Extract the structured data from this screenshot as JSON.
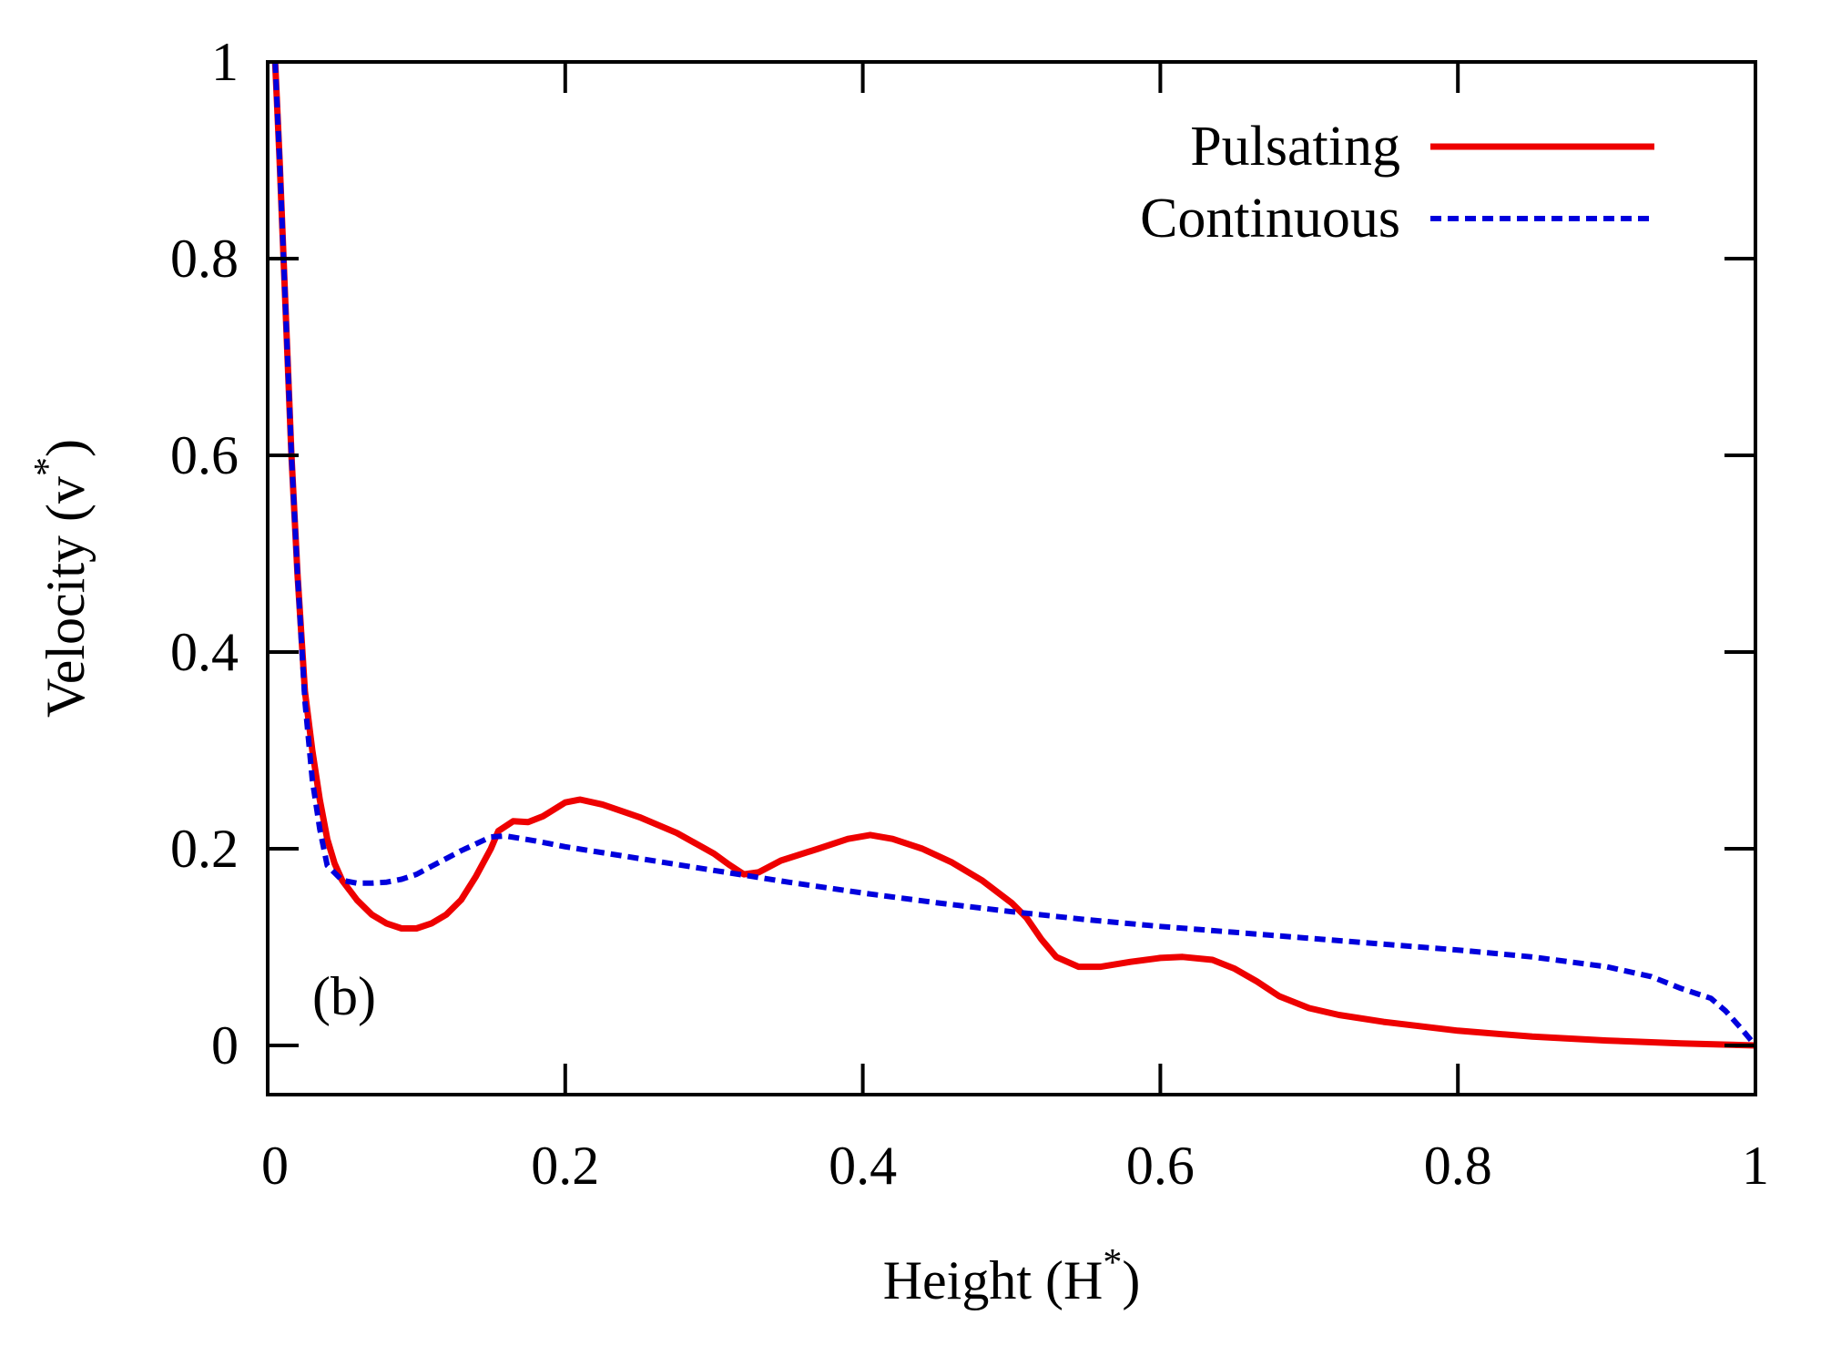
{
  "chart_data": {
    "type": "line",
    "title": "",
    "xlabel": "Height (H",
    "xlabel_sup": "*",
    "xlabel_end": ")",
    "ylabel": "Velocity (v",
    "ylabel_sup": "*",
    "ylabel_end": ")",
    "xlim": [
      0,
      1
    ],
    "ylim": [
      -0.05,
      1
    ],
    "xticks": [
      0,
      0.2,
      0.4,
      0.6,
      0.8,
      1
    ],
    "xtick_labels": [
      "0",
      "0.2",
      "0.4",
      "0.6",
      "0.8",
      "1"
    ],
    "yticks": [
      0,
      0.2,
      0.4,
      0.6,
      0.8,
      1
    ],
    "ytick_labels": [
      "0",
      "0.2",
      "0.4",
      "0.6",
      "0.8",
      "1"
    ],
    "grid": false,
    "legend_position": "top-right",
    "annotation": "(b)",
    "series": [
      {
        "name": "Pulsating",
        "color": "#ee0000",
        "dash": "solid",
        "points": [
          [
            0.005,
            1.0
          ],
          [
            0.008,
            0.9
          ],
          [
            0.012,
            0.75
          ],
          [
            0.016,
            0.6
          ],
          [
            0.02,
            0.48
          ],
          [
            0.025,
            0.36
          ],
          [
            0.03,
            0.3
          ],
          [
            0.035,
            0.25
          ],
          [
            0.04,
            0.21
          ],
          [
            0.045,
            0.185
          ],
          [
            0.05,
            0.168
          ],
          [
            0.06,
            0.148
          ],
          [
            0.07,
            0.133
          ],
          [
            0.08,
            0.124
          ],
          [
            0.09,
            0.119
          ],
          [
            0.1,
            0.119
          ],
          [
            0.11,
            0.124
          ],
          [
            0.12,
            0.133
          ],
          [
            0.13,
            0.148
          ],
          [
            0.14,
            0.172
          ],
          [
            0.15,
            0.2
          ],
          [
            0.155,
            0.218
          ],
          [
            0.165,
            0.228
          ],
          [
            0.175,
            0.227
          ],
          [
            0.185,
            0.233
          ],
          [
            0.2,
            0.247
          ],
          [
            0.21,
            0.25
          ],
          [
            0.225,
            0.245
          ],
          [
            0.25,
            0.232
          ],
          [
            0.275,
            0.216
          ],
          [
            0.3,
            0.195
          ],
          [
            0.31,
            0.184
          ],
          [
            0.32,
            0.174
          ],
          [
            0.33,
            0.176
          ],
          [
            0.345,
            0.188
          ],
          [
            0.37,
            0.2
          ],
          [
            0.39,
            0.21
          ],
          [
            0.405,
            0.214
          ],
          [
            0.42,
            0.21
          ],
          [
            0.44,
            0.2
          ],
          [
            0.46,
            0.186
          ],
          [
            0.48,
            0.168
          ],
          [
            0.5,
            0.145
          ],
          [
            0.51,
            0.13
          ],
          [
            0.52,
            0.108
          ],
          [
            0.53,
            0.09
          ],
          [
            0.545,
            0.08
          ],
          [
            0.56,
            0.08
          ],
          [
            0.58,
            0.085
          ],
          [
            0.6,
            0.089
          ],
          [
            0.615,
            0.09
          ],
          [
            0.635,
            0.087
          ],
          [
            0.65,
            0.078
          ],
          [
            0.665,
            0.065
          ],
          [
            0.68,
            0.05
          ],
          [
            0.7,
            0.038
          ],
          [
            0.72,
            0.031
          ],
          [
            0.75,
            0.024
          ],
          [
            0.8,
            0.015
          ],
          [
            0.85,
            0.009
          ],
          [
            0.9,
            0.005
          ],
          [
            0.95,
            0.002
          ],
          [
            1.0,
            0.0
          ]
        ]
      },
      {
        "name": "Continuous",
        "color": "#0000dd",
        "dash": "dashed",
        "points": [
          [
            0.005,
            1.0
          ],
          [
            0.008,
            0.9
          ],
          [
            0.012,
            0.75
          ],
          [
            0.016,
            0.6
          ],
          [
            0.02,
            0.48
          ],
          [
            0.025,
            0.35
          ],
          [
            0.03,
            0.27
          ],
          [
            0.035,
            0.22
          ],
          [
            0.04,
            0.183
          ],
          [
            0.05,
            0.168
          ],
          [
            0.06,
            0.165
          ],
          [
            0.07,
            0.165
          ],
          [
            0.08,
            0.166
          ],
          [
            0.09,
            0.169
          ],
          [
            0.1,
            0.174
          ],
          [
            0.11,
            0.182
          ],
          [
            0.12,
            0.19
          ],
          [
            0.13,
            0.198
          ],
          [
            0.14,
            0.205
          ],
          [
            0.15,
            0.212
          ],
          [
            0.16,
            0.213
          ],
          [
            0.18,
            0.208
          ],
          [
            0.2,
            0.202
          ],
          [
            0.25,
            0.19
          ],
          [
            0.3,
            0.178
          ],
          [
            0.35,
            0.166
          ],
          [
            0.4,
            0.155
          ],
          [
            0.45,
            0.145
          ],
          [
            0.5,
            0.136
          ],
          [
            0.55,
            0.128
          ],
          [
            0.6,
            0.121
          ],
          [
            0.65,
            0.115
          ],
          [
            0.7,
            0.109
          ],
          [
            0.75,
            0.103
          ],
          [
            0.8,
            0.097
          ],
          [
            0.85,
            0.09
          ],
          [
            0.9,
            0.08
          ],
          [
            0.93,
            0.07
          ],
          [
            0.95,
            0.058
          ],
          [
            0.97,
            0.048
          ],
          [
            0.98,
            0.035
          ],
          [
            0.99,
            0.018
          ],
          [
            1.0,
            0.0
          ]
        ]
      }
    ]
  }
}
